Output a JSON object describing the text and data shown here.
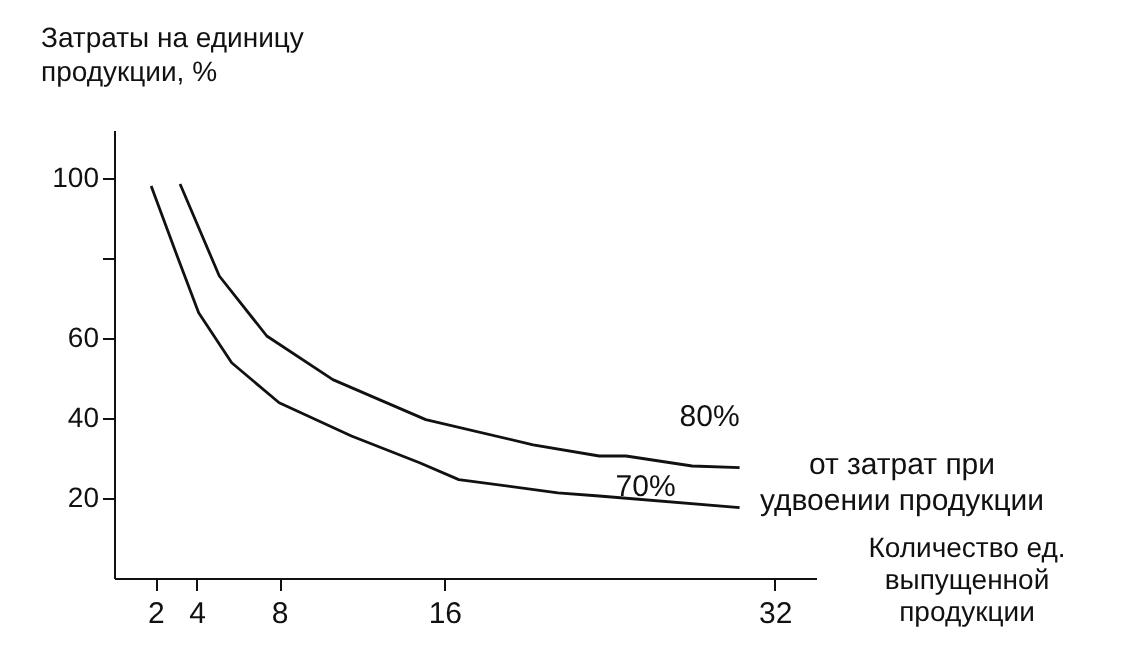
{
  "chart_data": {
    "type": "line",
    "xlabel": "Количество ед.\nвыпущенной\nпродукции",
    "ylabel": "Затраты на единицу\nпродукции, %",
    "xlim": [
      0,
      34
    ],
    "ylim": [
      0,
      112
    ],
    "xticks": [
      2,
      4,
      8,
      16,
      32
    ],
    "yticks": [
      20,
      40,
      60,
      {
        "value": 80,
        "label": null
      },
      100
    ],
    "grid": false,
    "marker": "none",
    "line_style": "solid",
    "annotations": [
      "от затрат при\nудвоении продукции"
    ],
    "series": [
      {
        "name": "80%",
        "color": "#111111",
        "x": [
          3.2,
          5.1,
          7.4,
          10.6,
          15.1,
          20.3,
          23.5,
          24.8,
          28,
          30.3
        ],
        "values": [
          98.5,
          75.5,
          60.5,
          49.6,
          39.6,
          33.3,
          30.5,
          30.5,
          28,
          27.6
        ]
      },
      {
        "name": "70%",
        "color": "#111111",
        "x": [
          1.8,
          3.0,
          4.1,
          5.7,
          8.0,
          11.5,
          14.8,
          16.7,
          21.5,
          23.5,
          30.3
        ],
        "values": [
          98,
          81.3,
          66.3,
          53.8,
          43.8,
          35.5,
          28.8,
          24.6,
          21.3,
          20.5,
          17.6
        ]
      }
    ]
  }
}
